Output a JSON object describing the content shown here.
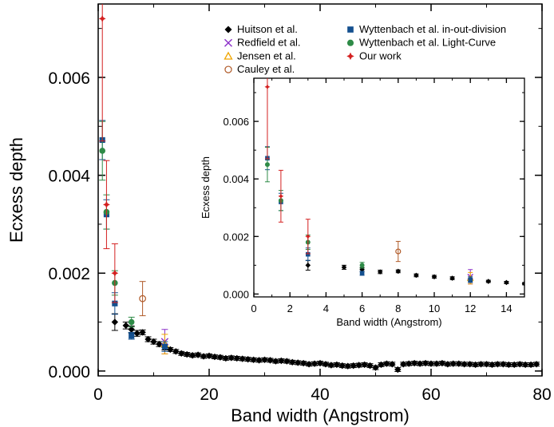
{
  "chart_data": {
    "type": "scatter",
    "main": {
      "xlabel": "Band width (Angstrom)",
      "ylabel": "Ecxess depth",
      "xlim": [
        0,
        80
      ],
      "ylim": [
        -0.0001,
        0.0075
      ],
      "xticks": [
        0,
        20,
        40,
        60,
        80
      ],
      "yticks": [
        0.0,
        0.002,
        0.004,
        0.006
      ],
      "xtick_labels": [
        "0",
        "20",
        "40",
        "60",
        "80"
      ],
      "ytick_labels": [
        "0.000",
        "0.002",
        "0.004",
        "0.006"
      ]
    },
    "inset": {
      "xlabel": "Band width (Angstrom)",
      "ylabel": "Ecxess depth",
      "xlim": [
        0,
        15
      ],
      "ylim": [
        -0.0001,
        0.0075
      ],
      "xticks": [
        0,
        2,
        4,
        6,
        8,
        10,
        12,
        14
      ],
      "yticks": [
        0.0,
        0.002,
        0.004,
        0.006
      ],
      "xtick_labels": [
        "0",
        "2",
        "4",
        "6",
        "8",
        "10",
        "12",
        "14"
      ],
      "ytick_labels": [
        "0.000",
        "0.002",
        "0.004",
        "0.006"
      ]
    },
    "series": [
      {
        "name": "Huitson et al.",
        "marker": "diamond",
        "color": "#000000",
        "points": [
          [
            3,
            0.001,
            0.00017
          ],
          [
            5,
            0.00093,
            7e-05
          ],
          [
            6,
            0.00085,
            7e-05
          ],
          [
            7,
            0.00077,
            6e-05
          ],
          [
            8,
            0.00079,
            5e-05
          ],
          [
            9,
            0.00065,
            5e-05
          ],
          [
            10,
            0.0006,
            5e-05
          ],
          [
            11,
            0.00055,
            5e-05
          ],
          [
            12,
            0.00048,
            5e-05
          ],
          [
            13,
            0.00044,
            4e-05
          ],
          [
            14,
            0.0004,
            4e-05
          ],
          [
            15,
            0.00036,
            4e-05
          ],
          [
            16,
            0.00034,
            4e-05
          ],
          [
            17,
            0.00032,
            4e-05
          ],
          [
            18,
            0.00033,
            4e-05
          ],
          [
            19,
            0.0003,
            4e-05
          ],
          [
            20,
            0.00031,
            4e-05
          ],
          [
            21,
            0.00029,
            4e-05
          ],
          [
            22,
            0.00028,
            4e-05
          ],
          [
            23,
            0.00026,
            4e-05
          ],
          [
            24,
            0.00027,
            4e-05
          ],
          [
            25,
            0.00026,
            4e-05
          ],
          [
            26,
            0.00025,
            4e-05
          ],
          [
            27,
            0.00024,
            4e-05
          ],
          [
            28,
            0.00023,
            4e-05
          ],
          [
            29,
            0.00022,
            4e-05
          ],
          [
            30,
            0.00023,
            4e-05
          ],
          [
            31,
            0.00022,
            4e-05
          ],
          [
            32,
            0.0002,
            4e-05
          ],
          [
            33,
            0.00021,
            4e-05
          ],
          [
            34,
            0.0002,
            4e-05
          ],
          [
            35,
            0.00018,
            4e-05
          ],
          [
            36,
            0.00017,
            4e-05
          ],
          [
            37,
            0.00016,
            4e-05
          ],
          [
            38,
            0.00014,
            4e-05
          ],
          [
            39,
            0.00015,
            4e-05
          ],
          [
            40,
            0.00016,
            4e-05
          ],
          [
            41,
            0.00014,
            4e-05
          ],
          [
            42,
            0.00012,
            4e-05
          ],
          [
            43,
            0.00013,
            4e-05
          ],
          [
            44,
            0.00011,
            4e-05
          ],
          [
            45,
            0.0001,
            4e-05
          ],
          [
            46,
            0.00011,
            4e-05
          ],
          [
            47,
            0.00012,
            4e-05
          ],
          [
            48,
            0.00013,
            4e-05
          ],
          [
            49,
            0.00011,
            4e-05
          ],
          [
            50,
            7e-05,
            4e-05
          ],
          [
            51,
            0.00013,
            4e-05
          ],
          [
            52,
            0.00015,
            4e-05
          ],
          [
            53,
            0.00014,
            4e-05
          ],
          [
            54,
            3e-05,
            4e-05
          ],
          [
            55,
            0.00014,
            4e-05
          ],
          [
            56,
            0.00015,
            4e-05
          ],
          [
            57,
            0.00016,
            4e-05
          ],
          [
            58,
            0.00015,
            4e-05
          ],
          [
            59,
            0.00016,
            4e-05
          ],
          [
            60,
            0.00015,
            4e-05
          ],
          [
            61,
            0.00015,
            4e-05
          ],
          [
            62,
            0.00016,
            4e-05
          ],
          [
            63,
            0.00014,
            4e-05
          ],
          [
            64,
            0.00015,
            4e-05
          ],
          [
            65,
            0.00015,
            4e-05
          ],
          [
            66,
            0.00014,
            4e-05
          ],
          [
            67,
            0.00014,
            4e-05
          ],
          [
            68,
            0.00013,
            4e-05
          ],
          [
            69,
            0.00014,
            4e-05
          ],
          [
            70,
            0.00014,
            4e-05
          ],
          [
            71,
            0.00013,
            4e-05
          ],
          [
            72,
            0.00014,
            4e-05
          ],
          [
            73,
            0.00014,
            4e-05
          ],
          [
            74,
            0.00013,
            4e-05
          ],
          [
            75,
            0.00013,
            4e-05
          ],
          [
            76,
            0.00014,
            4e-05
          ],
          [
            77,
            0.00013,
            4e-05
          ],
          [
            78,
            0.00013,
            4e-05
          ],
          [
            79,
            0.00014,
            4e-05
          ]
        ]
      },
      {
        "name": "Redfield et al.",
        "marker": "x",
        "color": "#8b2fc9",
        "points": [
          [
            12,
            0.0006,
            0.00025
          ]
        ]
      },
      {
        "name": "Jensen et al.",
        "marker": "triangle",
        "color": "#f0a500",
        "points": [
          [
            12,
            0.00055,
            0.0002
          ]
        ]
      },
      {
        "name": "Cauley et al.",
        "marker": "circle-open",
        "color": "#b05a28",
        "points": [
          [
            8,
            0.00148,
            0.00035
          ]
        ]
      },
      {
        "name": "Wyttenbach et al. in-out-division",
        "marker": "square",
        "color": "#14508f",
        "points": [
          [
            0.75,
            0.00472,
            0.0004
          ],
          [
            1.5,
            0.0032,
            0.0003
          ],
          [
            3,
            0.00138,
            0.00022
          ],
          [
            6,
            0.00072,
            7e-05
          ],
          [
            12,
            0.0005,
            0.0001
          ]
        ]
      },
      {
        "name": "Wyttenbach et al. Light-Curve",
        "marker": "circle",
        "color": "#2e8b47",
        "points": [
          [
            0.75,
            0.0045,
            0.0006
          ],
          [
            1.5,
            0.00325,
            0.00035
          ],
          [
            3,
            0.0018,
            0.00025
          ],
          [
            6,
            0.001,
            0.0001
          ]
        ]
      },
      {
        "name": "Our work",
        "marker": "star",
        "color": "#d42020",
        "points": [
          [
            0.75,
            0.0072,
            0.0025
          ],
          [
            1.5,
            0.0034,
            0.0009
          ],
          [
            3,
            0.002,
            0.0006
          ]
        ]
      }
    ],
    "legend": {
      "placement": "top-right"
    }
  }
}
